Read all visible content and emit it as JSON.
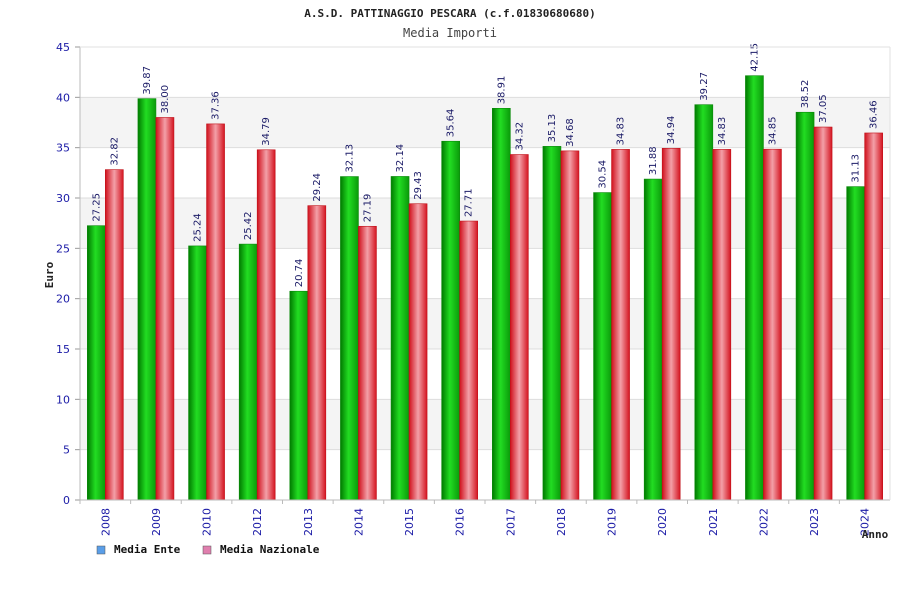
{
  "chart_data": {
    "type": "bar",
    "title": "A.S.D. PATTINAGGIO PESCARA (c.f.01830680680)",
    "subtitle": "Media Importi",
    "xlabel": "Anno",
    "ylabel": "Euro",
    "ylim": [
      0,
      45
    ],
    "yticks": [
      0,
      5,
      10,
      15,
      20,
      25,
      30,
      35,
      40,
      45
    ],
    "grid": true,
    "legend_position": "bottom-left",
    "categories": [
      "2008",
      "2009",
      "2010",
      "2012",
      "2013",
      "2014",
      "2015",
      "2016",
      "2017",
      "2018",
      "2019",
      "2020",
      "2021",
      "2022",
      "2023",
      "2024"
    ],
    "series": [
      {
        "name": "Media Ente",
        "color": "#11bb11",
        "legend_color": "#5a9ee8",
        "values": [
          27.25,
          39.87,
          25.24,
          25.42,
          20.74,
          32.13,
          32.14,
          35.64,
          38.91,
          35.13,
          30.54,
          31.88,
          39.27,
          42.15,
          38.52,
          31.13
        ],
        "labels": [
          "27.25",
          "39.87",
          "25.24",
          "25.42",
          "20.74",
          "32.13",
          "32.14",
          "35.64",
          "38.91",
          "35.13",
          "30.54",
          "31.88",
          "39.27",
          "42.15",
          "38.52",
          "31.13"
        ]
      },
      {
        "name": "Media Nazionale",
        "color": "#e8222e",
        "legend_color": "#e07fae",
        "values": [
          32.82,
          38.0,
          37.36,
          34.79,
          29.24,
          27.19,
          29.43,
          27.71,
          34.32,
          34.68,
          34.83,
          34.94,
          34.83,
          34.85,
          37.05,
          36.46
        ],
        "labels": [
          "32.82",
          "38.00",
          "37.36",
          "34.79",
          "29.24",
          "27.19",
          "29.43",
          "27.71",
          "34.32",
          "34.68",
          "34.83",
          "34.94",
          "34.83",
          "34.85",
          "37.05",
          "36.46"
        ]
      }
    ]
  }
}
